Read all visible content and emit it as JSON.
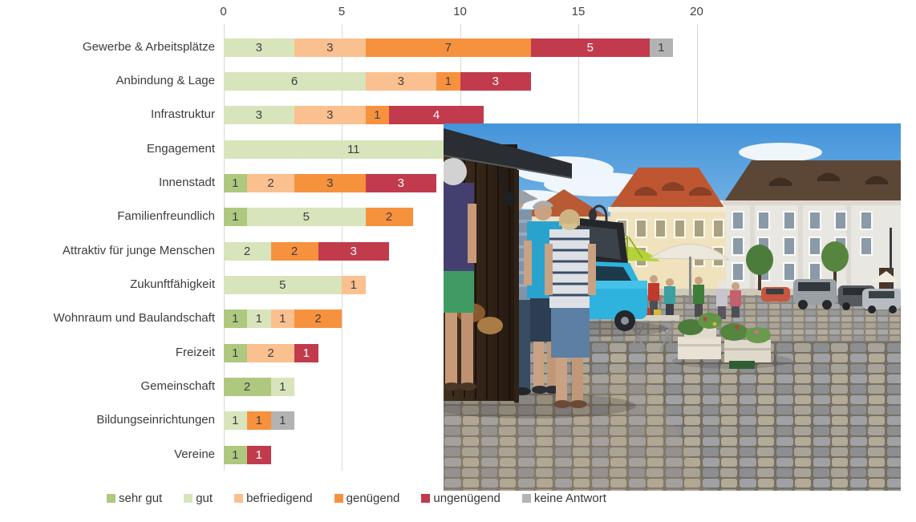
{
  "chart_data": {
    "type": "bar",
    "orientation": "horizontal",
    "stacked": true,
    "title": "",
    "xlabel": "",
    "ylabel": "",
    "xlim": [
      0,
      20
    ],
    "xticks": [
      0,
      5,
      10,
      15,
      20
    ],
    "grid": true,
    "legend_position": "bottom",
    "categories": [
      "Gewerbe & Arbeitsplätze",
      "Anbindung & Lage",
      "Infrastruktur",
      "Engagement",
      "Innenstadt",
      "Familienfreundlich",
      "Attraktiv für junge Menschen",
      "Zukunftfähigkeit",
      "Wohnraum und Baulandschaft",
      "Freizeit",
      "Gemeinschaft",
      "Bildungseinrichtungen",
      "Vereine"
    ],
    "series": [
      {
        "name": "sehr gut",
        "color": "#afc87f",
        "label_color": "#404040",
        "values": [
          0,
          0,
          0,
          0,
          1,
          1,
          0,
          0,
          1,
          1,
          2,
          0,
          1
        ]
      },
      {
        "name": "gut",
        "color": "#d8e4bc",
        "label_color": "#404040",
        "values": [
          3,
          6,
          3,
          11,
          0,
          5,
          2,
          5,
          1,
          0,
          1,
          1,
          0
        ]
      },
      {
        "name": "befriedigend",
        "color": "#fbc08f",
        "label_color": "#404040",
        "values": [
          3,
          3,
          3,
          0,
          2,
          0,
          0,
          1,
          1,
          2,
          0,
          0,
          0
        ]
      },
      {
        "name": "genügend",
        "color": "#f6913e",
        "label_color": "#404040",
        "values": [
          7,
          1,
          1,
          0,
          3,
          2,
          2,
          0,
          2,
          0,
          0,
          1,
          0
        ]
      },
      {
        "name": "ungenügend",
        "color": "#c13b4d",
        "label_color": "#ffffff",
        "values": [
          5,
          3,
          4,
          0,
          3,
          0,
          3,
          0,
          0,
          1,
          0,
          0,
          1
        ]
      },
      {
        "name": "keine Antwort",
        "color": "#b3b3b3",
        "label_color": "#404040",
        "values": [
          1,
          0,
          0,
          0,
          0,
          0,
          0,
          0,
          0,
          0,
          0,
          1,
          0
        ]
      }
    ]
  },
  "photo": {
    "description": "market square scene with stall, people, blue car, parasols, town houses and cobblestones"
  }
}
